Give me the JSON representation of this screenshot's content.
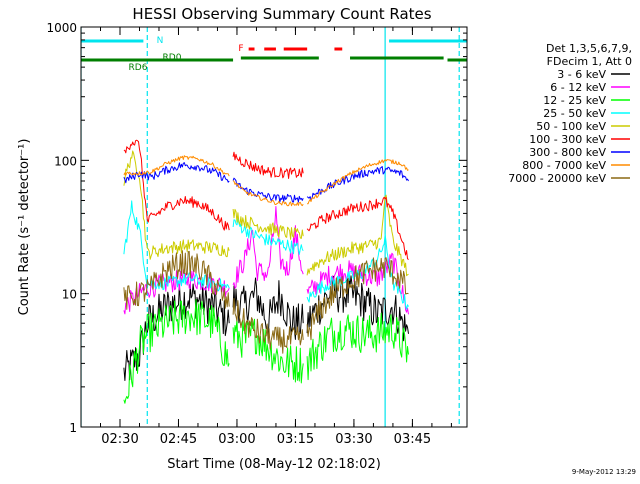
{
  "chart_data": {
    "type": "line",
    "title": "HESSI Observing Summary Count Rates",
    "xlabel": "Start Time (08-May-12 02:18:02)",
    "ylabel": "Count Rate (s⁻¹ detector⁻¹)",
    "y_scale": "log",
    "ylim": [
      1,
      1000
    ],
    "x_units": "minutes after 02:18:02",
    "xlim": [
      2,
      101
    ],
    "x_ticks": [
      {
        "label": "02:30",
        "x": 12
      },
      {
        "label": "02:45",
        "x": 27
      },
      {
        "label": "03:00",
        "x": 42
      },
      {
        "label": "03:15",
        "x": 57
      },
      {
        "label": "03:30",
        "x": 72
      },
      {
        "label": "03:45",
        "x": 87
      }
    ],
    "y_ticks": [
      {
        "label": "1",
        "y": 1
      },
      {
        "label": "10",
        "y": 10
      },
      {
        "label": "100",
        "y": 100
      },
      {
        "label": "1000",
        "y": 1000
      }
    ],
    "legend_header": [
      "Det 1,3,5,6,7,9,",
      "FDecim 1, Att 0"
    ],
    "legend_position": "right",
    "timestamp": "9-May-2012 13:29",
    "flags": {
      "N_label": "N",
      "RD0_label": "RD0",
      "RD6_label": "RD6",
      "F_label": "F",
      "N_color": "#00e5ee",
      "RD_color": "#007f00",
      "F_color": "#ff0000",
      "N_intervals": [
        [
          2,
          18
        ],
        [
          81,
          101
        ]
      ],
      "RD0_intervals": [
        [
          43,
          63
        ],
        [
          71,
          95
        ]
      ],
      "RD6_intervals": [
        [
          2,
          41
        ],
        [
          96,
          101
        ]
      ],
      "F_intervals": [
        [
          45,
          46.5
        ],
        [
          49,
          52
        ],
        [
          54,
          60
        ],
        [
          67,
          69
        ]
      ],
      "night_lines": [
        [
          2,
          "solid"
        ],
        [
          19,
          "dashed"
        ],
        [
          80,
          "solid"
        ],
        [
          99,
          "dashed"
        ]
      ]
    },
    "series": [
      {
        "name": "3 - 6 keV",
        "color": "#000000",
        "noise": 0.15,
        "segments": [
          [
            [
              13,
              2.5
            ],
            [
              17,
              3.5
            ],
            [
              19,
              6
            ],
            [
              24,
              8
            ],
            [
              30,
              9.5
            ],
            [
              36,
              8
            ],
            [
              40,
              6
            ]
          ],
          [
            [
              41,
              9
            ],
            [
              44,
              8
            ],
            [
              47,
              10
            ],
            [
              50,
              6
            ],
            [
              53,
              10
            ],
            [
              56,
              6
            ],
            [
              59,
              6
            ]
          ],
          [
            [
              60,
              6
            ],
            [
              63,
              8
            ],
            [
              66,
              10
            ],
            [
              70,
              10
            ],
            [
              74,
              9
            ],
            [
              78,
              7
            ],
            [
              82,
              8
            ],
            [
              86,
              5
            ]
          ]
        ]
      },
      {
        "name": "6 - 12 keV",
        "color": "#ff00ff",
        "noise": 0.08,
        "segments": [
          [
            [
              13,
              8
            ],
            [
              17,
              10
            ],
            [
              19,
              11
            ],
            [
              24,
              12
            ],
            [
              30,
              13
            ],
            [
              36,
              12
            ],
            [
              40,
              11
            ]
          ],
          [
            [
              41,
              12
            ],
            [
              44,
              18
            ],
            [
              46,
              30
            ],
            [
              47,
              15
            ],
            [
              50,
              14
            ],
            [
              52,
              40
            ],
            [
              53,
              18
            ],
            [
              55,
              15
            ],
            [
              57,
              28
            ],
            [
              59,
              14
            ]
          ],
          [
            [
              60,
              10
            ],
            [
              63,
              12
            ],
            [
              66,
              14
            ],
            [
              70,
              15
            ],
            [
              74,
              14
            ],
            [
              78,
              13
            ],
            [
              82,
              18
            ],
            [
              86,
              7
            ]
          ]
        ]
      },
      {
        "name": "12 - 25 keV",
        "color": "#00ff00",
        "noise": 0.15,
        "segments": [
          [
            [
              13,
              1.5
            ],
            [
              17,
              4
            ],
            [
              19,
              5
            ],
            [
              24,
              6
            ],
            [
              30,
              7
            ],
            [
              36,
              6
            ],
            [
              40,
              3
            ]
          ],
          [
            [
              41,
              5
            ],
            [
              44,
              4.5
            ],
            [
              47,
              5
            ],
            [
              50,
              4
            ],
            [
              54,
              3
            ],
            [
              59,
              3
            ]
          ],
          [
            [
              60,
              3
            ],
            [
              63,
              4
            ],
            [
              66,
              5
            ],
            [
              70,
              5.5
            ],
            [
              74,
              5
            ],
            [
              78,
              5
            ],
            [
              82,
              5.5
            ],
            [
              86,
              3.5
            ]
          ]
        ]
      },
      {
        "name": "25 - 50 keV",
        "color": "#00ffff",
        "noise": 0.05,
        "segments": [
          [
            [
              13,
              20
            ],
            [
              15,
              45
            ],
            [
              17,
              30
            ],
            [
              19,
              12
            ],
            [
              24,
              12
            ],
            [
              30,
              13
            ],
            [
              36,
              12
            ],
            [
              40,
              11
            ]
          ],
          [
            [
              41,
              35
            ],
            [
              43,
              32
            ],
            [
              46,
              28
            ],
            [
              50,
              25
            ],
            [
              55,
              23
            ],
            [
              59,
              21
            ]
          ],
          [
            [
              60,
              9
            ],
            [
              63,
              11
            ],
            [
              66,
              12
            ],
            [
              70,
              13
            ],
            [
              74,
              14
            ],
            [
              78,
              18
            ],
            [
              80,
              25
            ],
            [
              82,
              12
            ],
            [
              86,
              8
            ]
          ]
        ]
      },
      {
        "name": "50 - 100 keV",
        "color": "#cccc00",
        "noise": 0.05,
        "segments": [
          [
            [
              13,
              70
            ],
            [
              15,
              110
            ],
            [
              17,
              80
            ],
            [
              19,
              20
            ],
            [
              24,
              22
            ],
            [
              30,
              23
            ],
            [
              36,
              22
            ],
            [
              40,
              21
            ]
          ],
          [
            [
              41,
              40
            ],
            [
              44,
              35
            ],
            [
              48,
              32
            ],
            [
              52,
              30
            ],
            [
              56,
              28
            ],
            [
              59,
              27
            ]
          ],
          [
            [
              60,
              15
            ],
            [
              64,
              18
            ],
            [
              68,
              20
            ],
            [
              72,
              22
            ],
            [
              76,
              23
            ],
            [
              79,
              25
            ],
            [
              80,
              55
            ],
            [
              82,
              25
            ],
            [
              86,
              14
            ]
          ]
        ]
      },
      {
        "name": "100 - 300 keV",
        "color": "#ff0000",
        "noise": 0.04,
        "segments": [
          [
            [
              13,
              110
            ],
            [
              15,
              140
            ],
            [
              17,
              130
            ],
            [
              19,
              35
            ],
            [
              24,
              45
            ],
            [
              28,
              50
            ],
            [
              32,
              48
            ],
            [
              36,
              40
            ],
            [
              40,
              30
            ]
          ],
          [
            [
              41,
              110
            ],
            [
              43,
              100
            ],
            [
              46,
              90
            ],
            [
              50,
              82
            ],
            [
              55,
              80
            ],
            [
              59,
              80
            ]
          ],
          [
            [
              60,
              30
            ],
            [
              64,
              36
            ],
            [
              68,
              40
            ],
            [
              72,
              44
            ],
            [
              76,
              46
            ],
            [
              80,
              50
            ],
            [
              82,
              40
            ],
            [
              86,
              18
            ]
          ]
        ]
      },
      {
        "name": "300 - 800 keV",
        "color": "#0000ff",
        "noise": 0.03,
        "segments": [
          [
            [
              13,
              70
            ],
            [
              17,
              80
            ],
            [
              20,
              75
            ],
            [
              24,
              85
            ],
            [
              28,
              92
            ],
            [
              32,
              90
            ],
            [
              36,
              82
            ],
            [
              40,
              70
            ]
          ],
          [
            [
              41,
              70
            ],
            [
              44,
              60
            ],
            [
              48,
              55
            ],
            [
              52,
              52
            ],
            [
              56,
              52
            ],
            [
              59,
              52
            ]
          ],
          [
            [
              60,
              52
            ],
            [
              64,
              60
            ],
            [
              68,
              68
            ],
            [
              72,
              76
            ],
            [
              76,
              82
            ],
            [
              80,
              85
            ],
            [
              84,
              80
            ],
            [
              86,
              70
            ]
          ]
        ]
      },
      {
        "name": "800 - 7000 keV",
        "color": "#ff8c00",
        "noise": 0.015,
        "segments": [
          [
            [
              13,
              80
            ],
            [
              17,
              80
            ],
            [
              20,
              82
            ],
            [
              24,
              95
            ],
            [
              28,
              105
            ],
            [
              32,
              103
            ],
            [
              36,
              92
            ],
            [
              40,
              76
            ]
          ],
          [
            [
              41,
              70
            ],
            [
              44,
              58
            ],
            [
              48,
              52
            ],
            [
              52,
              48
            ],
            [
              56,
              47
            ],
            [
              59,
              47
            ]
          ],
          [
            [
              60,
              48
            ],
            [
              64,
              58
            ],
            [
              68,
              70
            ],
            [
              72,
              82
            ],
            [
              76,
              92
            ],
            [
              80,
              100
            ],
            [
              84,
              95
            ],
            [
              86,
              85
            ]
          ]
        ]
      },
      {
        "name": "7000 - 20000 keV",
        "color": "#8b6914",
        "noise": 0.1,
        "segments": [
          [
            [
              13,
              9
            ],
            [
              17,
              10
            ],
            [
              20,
              11
            ],
            [
              24,
              15
            ],
            [
              28,
              17
            ],
            [
              32,
              16
            ],
            [
              36,
              12
            ],
            [
              40,
              8
            ]
          ],
          [
            [
              41,
              8
            ],
            [
              44,
              6
            ],
            [
              48,
              5
            ],
            [
              52,
              4.5
            ],
            [
              56,
              4.5
            ],
            [
              59,
              4.5
            ]
          ],
          [
            [
              60,
              5
            ],
            [
              64,
              8
            ],
            [
              68,
              11
            ],
            [
              72,
              13
            ],
            [
              76,
              15
            ],
            [
              80,
              16
            ],
            [
              84,
              13
            ],
            [
              86,
              10
            ]
          ]
        ]
      }
    ]
  }
}
